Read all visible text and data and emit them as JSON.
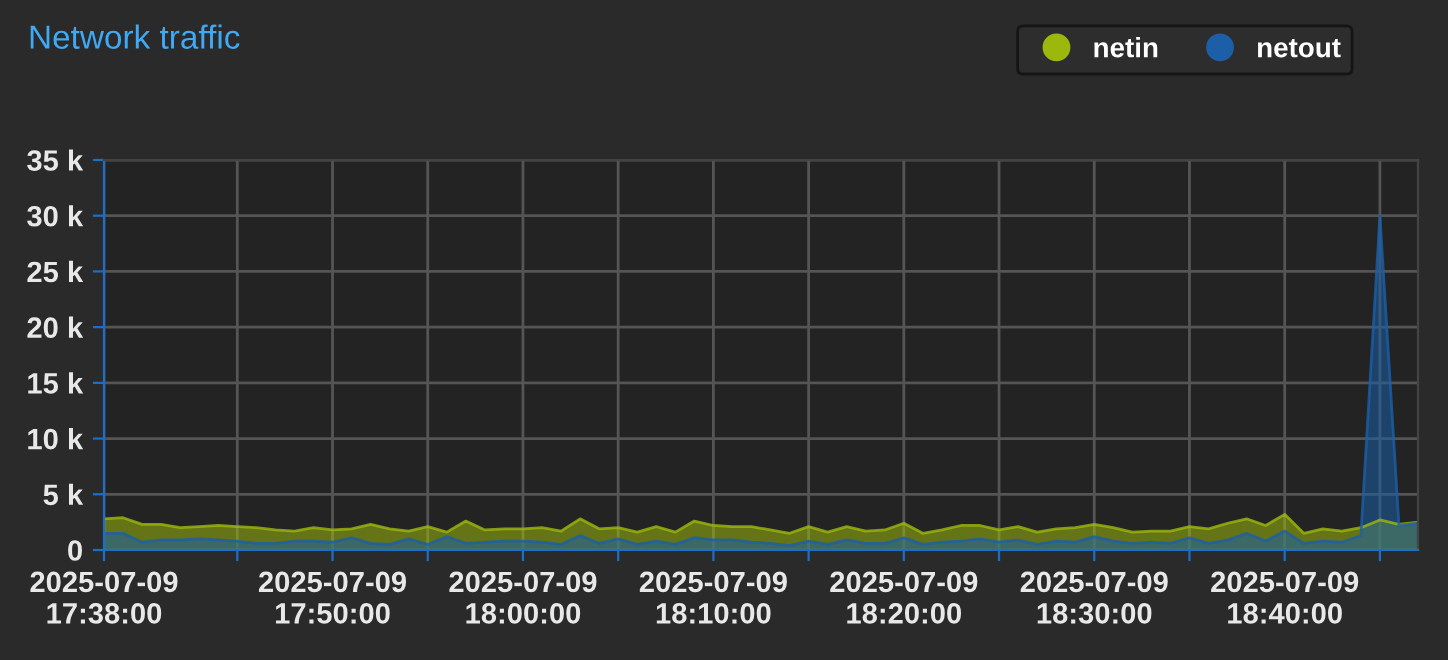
{
  "chart_data": {
    "type": "area",
    "title": "Network traffic",
    "x": [
      "2025-07-09T17:38",
      "2025-07-09T17:39",
      "2025-07-09T17:40",
      "2025-07-09T17:41",
      "2025-07-09T17:42",
      "2025-07-09T17:43",
      "2025-07-09T17:44",
      "2025-07-09T17:45",
      "2025-07-09T17:46",
      "2025-07-09T17:47",
      "2025-07-09T17:48",
      "2025-07-09T17:49",
      "2025-07-09T17:50",
      "2025-07-09T17:51",
      "2025-07-09T17:52",
      "2025-07-09T17:53",
      "2025-07-09T17:54",
      "2025-07-09T17:55",
      "2025-07-09T17:56",
      "2025-07-09T17:57",
      "2025-07-09T17:58",
      "2025-07-09T17:59",
      "2025-07-09T18:00",
      "2025-07-09T18:01",
      "2025-07-09T18:02",
      "2025-07-09T18:03",
      "2025-07-09T18:04",
      "2025-07-09T18:05",
      "2025-07-09T18:06",
      "2025-07-09T18:07",
      "2025-07-09T18:08",
      "2025-07-09T18:09",
      "2025-07-09T18:10",
      "2025-07-09T18:11",
      "2025-07-09T18:12",
      "2025-07-09T18:13",
      "2025-07-09T18:14",
      "2025-07-09T18:15",
      "2025-07-09T18:16",
      "2025-07-09T18:17",
      "2025-07-09T18:18",
      "2025-07-09T18:19",
      "2025-07-09T18:20",
      "2025-07-09T18:21",
      "2025-07-09T18:22",
      "2025-07-09T18:23",
      "2025-07-09T18:24",
      "2025-07-09T18:25",
      "2025-07-09T18:26",
      "2025-07-09T18:27",
      "2025-07-09T18:28",
      "2025-07-09T18:29",
      "2025-07-09T18:30",
      "2025-07-09T18:31",
      "2025-07-09T18:32",
      "2025-07-09T18:33",
      "2025-07-09T18:34",
      "2025-07-09T18:35",
      "2025-07-09T18:36",
      "2025-07-09T18:37",
      "2025-07-09T18:38",
      "2025-07-09T18:39",
      "2025-07-09T18:40",
      "2025-07-09T18:41",
      "2025-07-09T18:42",
      "2025-07-09T18:43",
      "2025-07-09T18:44",
      "2025-07-09T18:45",
      "2025-07-09T18:46",
      "2025-07-09T18:47"
    ],
    "series": [
      {
        "name": "netin",
        "color": "#9cb80c",
        "values": [
          2800,
          2900,
          2300,
          2300,
          2000,
          2100,
          2200,
          2100,
          2000,
          1800,
          1700,
          2000,
          1800,
          1900,
          2300,
          1900,
          1700,
          2100,
          1600,
          2600,
          1800,
          1900,
          1900,
          2000,
          1700,
          2800,
          1900,
          2000,
          1600,
          2100,
          1600,
          2600,
          2200,
          2100,
          2100,
          1800,
          1500,
          2100,
          1600,
          2100,
          1700,
          1800,
          2400,
          1500,
          1800,
          2200,
          2200,
          1800,
          2100,
          1600,
          1900,
          2000,
          2300,
          2000,
          1600,
          1700,
          1700,
          2100,
          1900,
          2400,
          2800,
          2200,
          3200,
          1500,
          1900,
          1700,
          2000,
          2700,
          2300,
          2500
        ]
      },
      {
        "name": "netout",
        "color": "#1c5fa8",
        "values": [
          1500,
          1500,
          700,
          900,
          900,
          1000,
          900,
          800,
          600,
          600,
          800,
          800,
          700,
          1100,
          600,
          500,
          1000,
          500,
          1200,
          600,
          700,
          800,
          800,
          700,
          500,
          1300,
          600,
          1000,
          500,
          800,
          500,
          1100,
          900,
          900,
          700,
          600,
          400,
          800,
          500,
          900,
          600,
          600,
          1100,
          500,
          700,
          800,
          1000,
          700,
          900,
          500,
          800,
          700,
          1200,
          800,
          600,
          700,
          600,
          1100,
          600,
          900,
          1500,
          800,
          1700,
          600,
          800,
          700,
          1300,
          30000,
          2200,
          2400
        ]
      }
    ],
    "ylim": [
      0,
      35000
    ],
    "yticks": [
      0,
      {
        "value": 5000,
        "label": "5 k"
      },
      {
        "value": 10000,
        "label": "10 k"
      },
      {
        "value": 15000,
        "label": "15 k"
      },
      {
        "value": 20000,
        "label": "20 k"
      },
      {
        "value": 25000,
        "label": "25 k"
      },
      {
        "value": 30000,
        "label": "30 k"
      },
      {
        "value": 35000,
        "label": "35 k"
      }
    ],
    "xlim": [
      "2025-07-09T17:38",
      "2025-07-09T18:47"
    ],
    "xticks": [
      {
        "value": "2025-07-09T17:38",
        "label": "2025-07-09\n17:38:00"
      },
      {
        "value": "2025-07-09T17:45",
        "label": null
      },
      {
        "value": "2025-07-09T17:50",
        "label": "2025-07-09\n17:50:00"
      },
      {
        "value": "2025-07-09T17:55",
        "label": null
      },
      {
        "value": "2025-07-09T18:00",
        "label": "2025-07-09\n18:00:00"
      },
      {
        "value": "2025-07-09T18:05",
        "label": null
      },
      {
        "value": "2025-07-09T18:10",
        "label": "2025-07-09\n18:10:00"
      },
      {
        "value": "2025-07-09T18:15",
        "label": null
      },
      {
        "value": "2025-07-09T18:20",
        "label": "2025-07-09\n18:20:00"
      },
      {
        "value": "2025-07-09T18:25",
        "label": null
      },
      {
        "value": "2025-07-09T18:30",
        "label": "2025-07-09\n18:30:00"
      },
      {
        "value": "2025-07-09T18:35",
        "label": null
      },
      {
        "value": "2025-07-09T18:40",
        "label": "2025-07-09\n18:40:00"
      },
      {
        "value": "2025-07-09T18:45",
        "label": null
      }
    ],
    "grid": true,
    "legend": "top right"
  }
}
